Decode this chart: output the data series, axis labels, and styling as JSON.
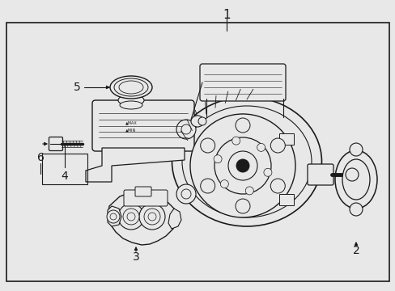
{
  "fig_width": 4.89,
  "fig_height": 3.6,
  "dpi": 100,
  "bg_color": "#e8e8e8",
  "diagram_bg": "#e8e8e8",
  "border_color": "#000000",
  "line_color": "#1a1a1a",
  "lw_main": 1.0,
  "lw_thin": 0.5,
  "white": "#ffffff",
  "part_lc": "#222222"
}
